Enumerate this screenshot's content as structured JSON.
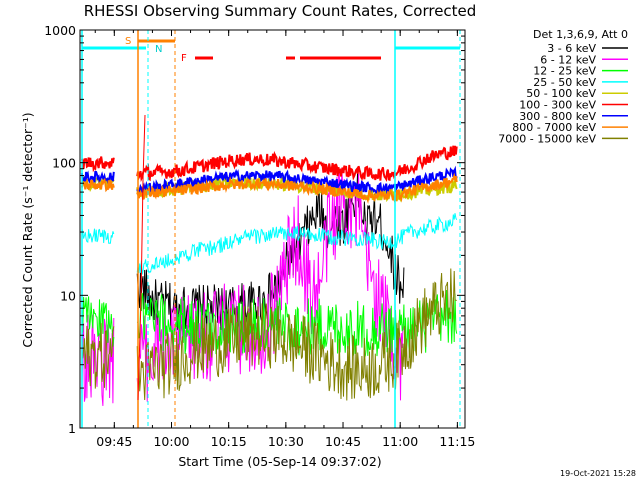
{
  "chart_data": {
    "type": "line",
    "title": "RHESSI Observing Summary Count Rates, Corrected",
    "xlabel": "Start Time (05-Sep-14 09:37:02)",
    "ylabel": "Corrected Count Rate (s⁻¹ detector⁻¹)",
    "yscale": "log",
    "ylim": [
      1,
      1000
    ],
    "xlim_minutes": [
      -1,
      100
    ],
    "x_ticks": [
      "09:45",
      "10:00",
      "10:15",
      "10:30",
      "10:45",
      "11:00",
      "11:15"
    ],
    "y_ticks": [
      "1",
      "10",
      "100",
      "1000"
    ],
    "legend_title": "Det 1,3,6,9, Att 0",
    "legend_position": "right",
    "timestamp": "19-Oct-2021 15:28",
    "flags": {
      "S": "S",
      "N": "N",
      "F": "F"
    },
    "series": [
      {
        "name": "3 - 6 keV",
        "color": "#000000",
        "x": [
          14,
          16,
          18,
          20,
          22,
          24,
          26,
          28,
          30,
          32,
          34,
          36,
          38,
          40,
          42,
          44,
          46,
          48,
          50,
          52,
          54,
          56,
          58,
          60,
          62,
          64,
          66,
          68,
          70,
          72,
          74,
          76,
          78,
          80,
          82,
          84
        ],
        "y": [
          12,
          11,
          9,
          8.5,
          8.5,
          8,
          8,
          8,
          8,
          8,
          8,
          8,
          8,
          8,
          8.5,
          8.5,
          9,
          9.5,
          10.5,
          13,
          20,
          22,
          30,
          36,
          45,
          30,
          38,
          34,
          50,
          60,
          32,
          40,
          33,
          24,
          14,
          12
        ]
      },
      {
        "name": "6 - 12 keV",
        "color": "#ff00ff",
        "x": [
          14,
          16,
          18,
          20,
          22,
          24,
          26,
          28,
          30,
          32,
          34,
          36,
          38,
          40,
          42,
          44,
          46,
          48,
          50,
          52,
          54,
          56,
          58,
          60,
          62,
          64,
          66,
          68,
          70,
          72,
          74,
          76,
          78,
          80,
          82,
          84
        ],
        "y": [
          3.5,
          3.5,
          3.6,
          4,
          3.8,
          4.5,
          4.5,
          4.5,
          5,
          5,
          5,
          5.5,
          5.5,
          5.5,
          5.5,
          5.5,
          5.5,
          6,
          8,
          12,
          20,
          28,
          15,
          10,
          12,
          30,
          40,
          60,
          45,
          40,
          18,
          12,
          8,
          6,
          3.5,
          3.5
        ]
      },
      {
        "name": "12 - 25 keV",
        "color": "#00ff00",
        "x": [
          14,
          18,
          22,
          26,
          30,
          34,
          38,
          42,
          46,
          50,
          54,
          58,
          62,
          66,
          70,
          74,
          78,
          82,
          86,
          90,
          94,
          98
        ],
        "y": [
          6.5,
          6.5,
          6,
          6,
          6,
          5.5,
          5.8,
          5.8,
          6,
          6,
          5.8,
          5.8,
          5.8,
          5.8,
          5.5,
          5.5,
          5.5,
          5.5,
          5.5,
          6,
          6.5,
          7
        ]
      },
      {
        "name": "25 - 50 keV",
        "color": "#00ffff",
        "x": [
          14,
          18,
          22,
          26,
          30,
          34,
          38,
          42,
          46,
          50,
          54,
          58,
          62,
          66,
          70,
          74,
          78,
          82,
          86,
          90,
          94,
          98
        ],
        "y": [
          16,
          17,
          18,
          20,
          22,
          23,
          25,
          27,
          28,
          29,
          29,
          29,
          28,
          27,
          27,
          27,
          25,
          26,
          30,
          32,
          34,
          37
        ]
      },
      {
        "name": "50 - 100 keV",
        "color": "#cccc00",
        "x": [
          14,
          18,
          22,
          26,
          30,
          34,
          38,
          42,
          46,
          50,
          54,
          58,
          62,
          66,
          70,
          74,
          78,
          82,
          86,
          90,
          94,
          98
        ],
        "y": [
          60,
          61,
          62,
          64,
          66,
          68,
          70,
          70,
          71,
          70,
          68,
          66,
          64,
          62,
          60,
          58,
          57,
          58,
          60,
          62,
          65,
          68
        ]
      },
      {
        "name": "100 - 300 keV",
        "color": "#ff0000",
        "x": [
          14,
          18,
          22,
          26,
          30,
          34,
          38,
          42,
          46,
          50,
          54,
          58,
          62,
          66,
          70,
          74,
          78,
          82,
          86,
          90,
          94,
          98
        ],
        "y": [
          83,
          84,
          85,
          88,
          93,
          98,
          103,
          106,
          106,
          104,
          100,
          96,
          92,
          89,
          86,
          83,
          82,
          84,
          94,
          108,
          118,
          122
        ]
      },
      {
        "name": "300 - 800 keV",
        "color": "#0000ff",
        "x": [
          14,
          18,
          22,
          26,
          30,
          34,
          38,
          42,
          46,
          50,
          54,
          58,
          62,
          66,
          70,
          74,
          78,
          82,
          86,
          90,
          94,
          98
        ],
        "y": [
          64,
          65,
          67,
          70,
          73,
          76,
          78,
          79,
          80,
          79,
          77,
          74,
          72,
          70,
          67,
          65,
          64,
          65,
          70,
          76,
          80,
          82
        ]
      },
      {
        "name": "800 - 7000 keV",
        "color": "#ff8000",
        "x": [
          14,
          18,
          22,
          26,
          30,
          34,
          38,
          42,
          46,
          50,
          54,
          58,
          62,
          66,
          70,
          74,
          78,
          82,
          86,
          90,
          94,
          98
        ],
        "y": [
          58,
          59,
          60,
          62,
          64,
          66,
          68,
          69,
          70,
          69,
          67,
          65,
          63,
          61,
          59,
          57,
          56,
          57,
          61,
          66,
          70,
          74
        ]
      },
      {
        "name": "7000 - 15000 keV",
        "color": "#808000",
        "x": [
          14,
          18,
          22,
          26,
          30,
          34,
          38,
          42,
          46,
          50,
          54,
          58,
          62,
          66,
          70,
          74,
          78,
          82,
          86,
          90,
          94,
          98
        ],
        "y": [
          2.5,
          2.8,
          3,
          3.5,
          4,
          4.2,
          4.5,
          5,
          5,
          5,
          4.5,
          4,
          3.5,
          3,
          2.8,
          2.8,
          3,
          3.5,
          5,
          7,
          8.5,
          9.5
        ]
      }
    ]
  }
}
